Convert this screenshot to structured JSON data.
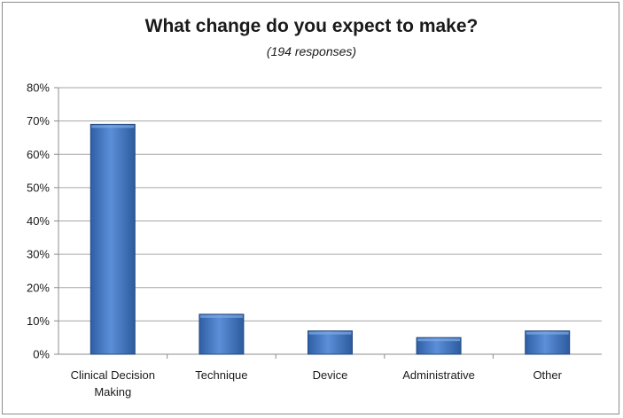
{
  "chart_data": {
    "type": "bar",
    "title": "What change do you expect to make?",
    "subtitle": "(194 responses)",
    "categories": [
      "Clinical Decision Making",
      "Technique",
      "Device",
      "Administrative",
      "Other"
    ],
    "category_lines": [
      [
        "Clinical Decision",
        "Making"
      ],
      [
        "Technique"
      ],
      [
        "Device"
      ],
      [
        "Administrative"
      ],
      [
        "Other"
      ]
    ],
    "values": [
      69,
      12,
      7,
      5,
      7
    ],
    "ylim": [
      0,
      80
    ],
    "yticks": [
      "0%",
      "10%",
      "20%",
      "30%",
      "40%",
      "50%",
      "60%",
      "70%",
      "80%"
    ],
    "xlabel": "",
    "ylabel": "",
    "grid": true,
    "bar_color": "#3f76c4",
    "bar_edge_color": "#244a80",
    "grid_color": "#a6a6a6"
  }
}
